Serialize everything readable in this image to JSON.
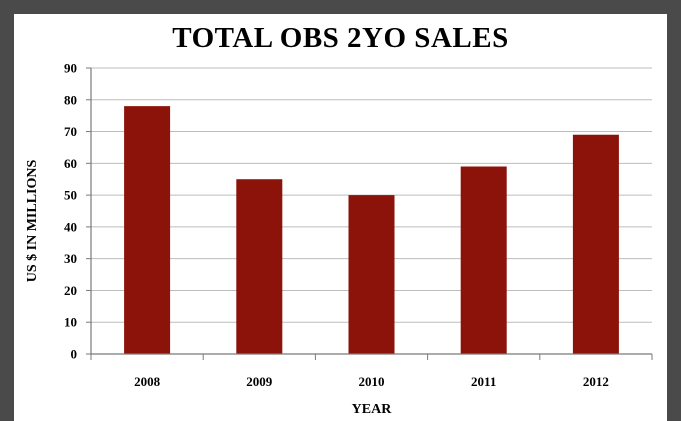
{
  "colors": {
    "bar": "#8b1309",
    "grid": "#bdbdbd",
    "frame": "#4a4a4a",
    "panel": "#ffffff"
  },
  "chart_data": {
    "type": "bar",
    "title": "TOTAL OBS 2YO SALES",
    "xlabel": "YEAR",
    "ylabel": "US $ IN MILLIONS",
    "categories": [
      "2008",
      "2009",
      "2010",
      "2011",
      "2012"
    ],
    "values": [
      78,
      55,
      50,
      59,
      69
    ],
    "ylim": [
      0,
      90
    ],
    "yticks": [
      0,
      10,
      20,
      30,
      40,
      50,
      60,
      70,
      80,
      90
    ],
    "grid": true,
    "legend": "none"
  }
}
